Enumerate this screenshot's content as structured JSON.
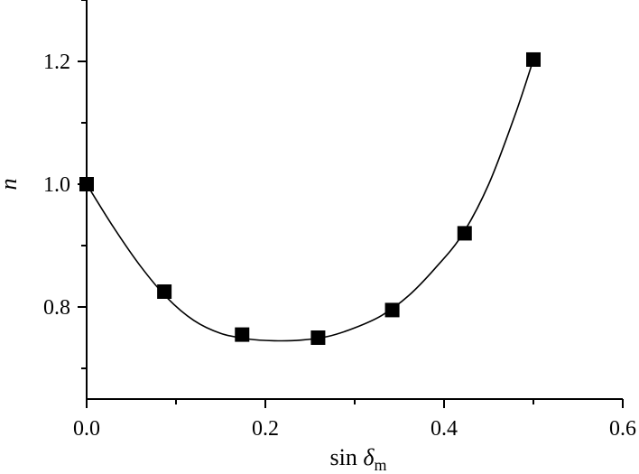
{
  "chart_data": {
    "type": "scatter",
    "title": "",
    "xlabel": {
      "main": "sin ",
      "symbol": "δ",
      "subscript": "m"
    },
    "ylabel": "n",
    "xlim": [
      0.0,
      0.6
    ],
    "ylim": [
      0.65,
      1.3
    ],
    "x_ticks": [
      0.0,
      0.2,
      0.4,
      0.6
    ],
    "x_tick_labels": [
      "0.0",
      "0.2",
      "0.4",
      "0.6"
    ],
    "y_ticks": [
      0.8,
      1.0,
      1.2
    ],
    "y_tick_labels": [
      "0.8",
      "1.0",
      "1.2"
    ],
    "grid": false,
    "series": [
      {
        "marker": "square",
        "color": "#000000",
        "x": [
          0.0,
          0.087,
          0.174,
          0.259,
          0.342,
          0.423,
          0.5
        ],
        "y": [
          1.0,
          0.825,
          0.755,
          0.75,
          0.795,
          0.92,
          1.203
        ]
      }
    ],
    "fit_curve": {
      "type": "smooth",
      "color": "#000000",
      "x": [
        0.0,
        0.03,
        0.06,
        0.09,
        0.12,
        0.15,
        0.18,
        0.21,
        0.24,
        0.27,
        0.3,
        0.33,
        0.36,
        0.39,
        0.42,
        0.45,
        0.48,
        0.5
      ],
      "y": [
        1.0,
        0.93,
        0.867,
        0.815,
        0.778,
        0.757,
        0.748,
        0.745,
        0.746,
        0.752,
        0.766,
        0.786,
        0.818,
        0.863,
        0.917,
        1.0,
        1.115,
        1.203
      ]
    }
  }
}
